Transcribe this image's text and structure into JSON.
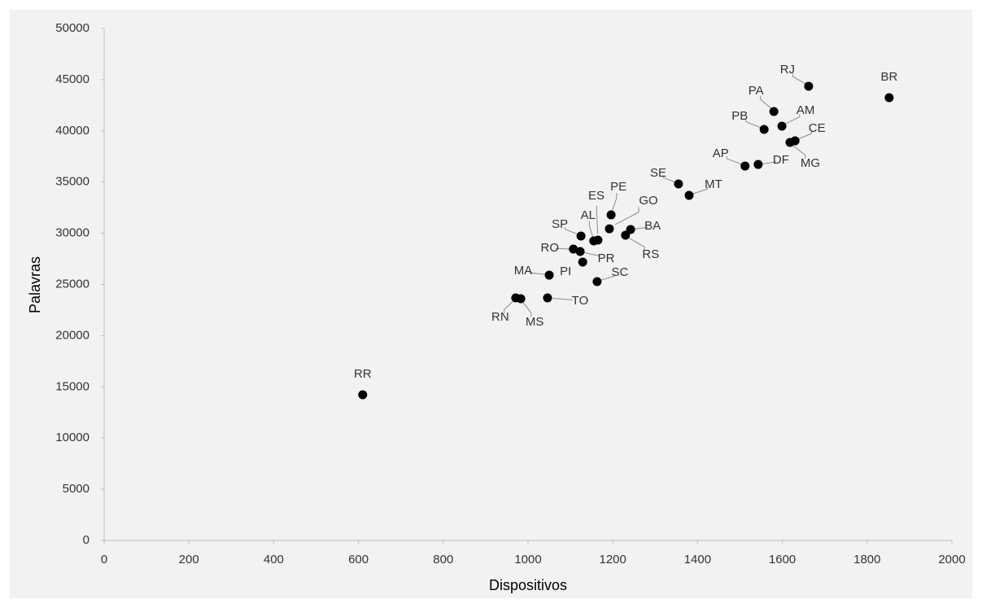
{
  "chart_data": {
    "type": "scatter",
    "x_label": "Dispositivos",
    "y_label": "Palavras",
    "labels": [
      "RR",
      "BR",
      "RJ",
      "PA",
      "AM",
      "PB",
      "CE",
      "MG",
      "AP",
      "DF",
      "SE",
      "MT",
      "PE",
      "GO",
      "BA",
      "ES",
      "AL",
      "SP",
      "RS",
      "RO",
      "PR",
      "PI",
      "SC",
      "MA",
      "TO",
      "RN",
      "MS"
    ],
    "x": [
      610,
      1852,
      1662,
      1580,
      1599,
      1557,
      1630,
      1618,
      1512,
      1543,
      1355,
      1380,
      1196,
      1192,
      1242,
      1165,
      1155,
      1125,
      1230,
      1107,
      1123,
      1129,
      1163,
      1050,
      1046,
      971,
      983
    ],
    "values": [
      14230,
      43240,
      44360,
      41890,
      40460,
      40140,
      39030,
      38870,
      36570,
      36720,
      34820,
      33700,
      31800,
      30440,
      30370,
      29330,
      29250,
      29730,
      29810,
      28460,
      28220,
      27190,
      25280,
      25910,
      23690,
      23690,
      23610
    ],
    "color": "#000000",
    "xlim": [
      0,
      2000
    ],
    "xticks": [
      0,
      200,
      400,
      600,
      800,
      1000,
      1200,
      1400,
      1600,
      1800,
      2000
    ],
    "ylim": [
      0,
      50000
    ],
    "yticks": [
      0,
      5000,
      10000,
      15000,
      20000,
      25000,
      30000,
      35000,
      40000,
      45000,
      50000
    ]
  }
}
